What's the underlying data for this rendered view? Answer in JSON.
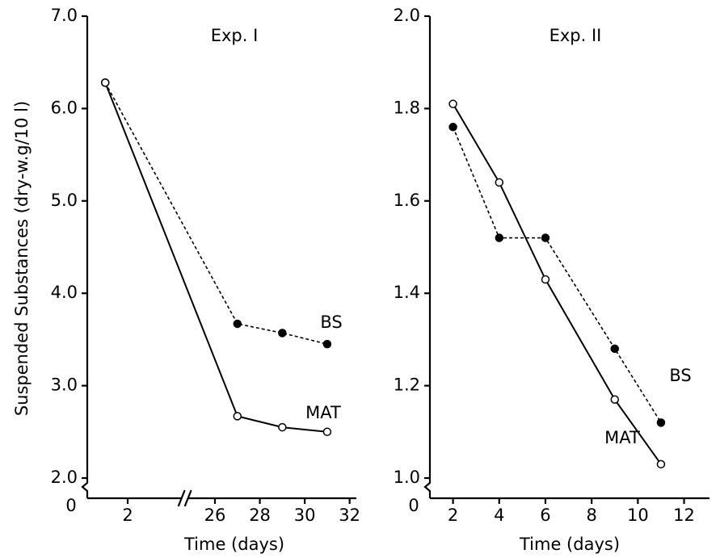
{
  "chart_data": [
    {
      "type": "line",
      "title": "Exp. I",
      "y_label": "Suspended  Substances (dry-w.g/10 l)",
      "x_label": "Time (days)",
      "x": [
        1,
        27,
        29,
        31
      ],
      "x_segments": [
        [
          0.2,
          4.4
        ],
        [
          24.8,
          32.3
        ]
      ],
      "xticks": [
        2,
        26,
        28,
        30,
        32
      ],
      "ylim": [
        2.0,
        7.0
      ],
      "yticks": [
        {
          "value": 2,
          "label": "2.0"
        },
        {
          "value": 3,
          "label": "3.0"
        },
        {
          "value": 4,
          "label": "4.0"
        },
        {
          "value": 5,
          "label": "5.0"
        },
        {
          "value": 6,
          "label": "6.0"
        },
        {
          "value": 7,
          "label": "7.0"
        }
      ],
      "y_break_label": "0",
      "series": [
        {
          "name": "BS",
          "color": "#000000",
          "line_style": "dashed",
          "marker": "filled",
          "values": [
            6.28,
            3.67,
            3.57,
            3.45
          ]
        },
        {
          "name": "MAT",
          "color": "#000000",
          "line_style": "solid",
          "marker": "open",
          "values": [
            6.28,
            2.67,
            2.55,
            2.5
          ]
        }
      ]
    },
    {
      "type": "line",
      "title": "Exp. II",
      "x_label": "Time (days)",
      "x": [
        2,
        4,
        6,
        9,
        11
      ],
      "xlim": [
        1,
        13.1
      ],
      "xticks": [
        2,
        4,
        6,
        8,
        10,
        12
      ],
      "ylim": [
        1.0,
        2.0
      ],
      "yticks": [
        {
          "value": 1,
          "label": "1.0"
        },
        {
          "value": 1.2,
          "label": "1.2"
        },
        {
          "value": 1.4,
          "label": "1.4"
        },
        {
          "value": 1.6,
          "label": "1.6"
        },
        {
          "value": 1.8,
          "label": "1.8"
        },
        {
          "value": 2,
          "label": "2.0"
        }
      ],
      "y_break_label": "0",
      "series": [
        {
          "name": "BS",
          "color": "#000000",
          "line_style": "dashed",
          "marker": "filled",
          "values": [
            1.76,
            1.52,
            1.52,
            1.28,
            1.12
          ]
        },
        {
          "name": "MAT",
          "color": "#000000",
          "line_style": "solid",
          "marker": "open",
          "values": [
            1.81,
            1.64,
            1.43,
            1.17,
            1.03
          ]
        }
      ]
    }
  ]
}
